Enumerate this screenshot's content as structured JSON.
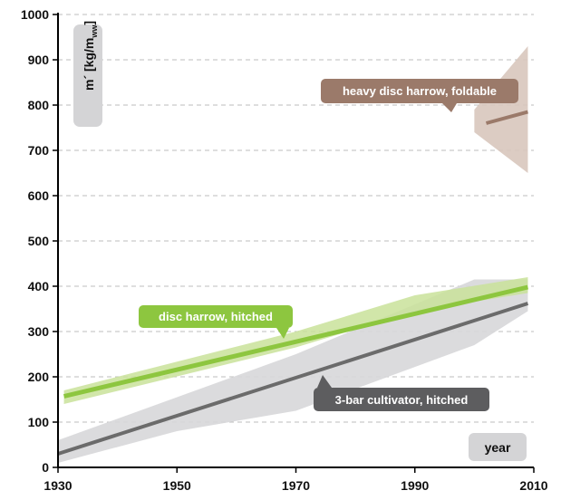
{
  "chart_data": {
    "type": "line",
    "title": "",
    "xlabel": "year",
    "ylabel": "m´ [kg/mww]",
    "ylabel_parts": {
      "main": "m´ [kg/m",
      "sub": "ww",
      "close": "]"
    },
    "xlim": [
      1930,
      2010
    ],
    "ylim": [
      0,
      1000
    ],
    "x_ticks": [
      "1930",
      "1950",
      "1970",
      "1990",
      "2010"
    ],
    "y_ticks": [
      "0",
      "100",
      "200",
      "300",
      "400",
      "500",
      "600",
      "700",
      "800",
      "900",
      "1000"
    ],
    "grid": "horizontal dashed",
    "series": [
      {
        "name": "3-bar cultivator, hitched",
        "color": "#6b6b6b",
        "band_color": "#d7d7d9",
        "x": [
          1930,
          2009
        ],
        "y": [
          30,
          362
        ],
        "band_upper": [
          [
            1930,
            60
          ],
          [
            1970,
            250
          ],
          [
            2000,
            415
          ],
          [
            2009,
            415
          ]
        ],
        "band_lower": [
          [
            2009,
            345
          ],
          [
            2000,
            270
          ],
          [
            1970,
            125
          ],
          [
            1950,
            80
          ],
          [
            1930,
            10
          ]
        ]
      },
      {
        "name": "disc harrow, hitched",
        "color": "#8dc63f",
        "band_color": "#c9e29a",
        "x": [
          1931,
          2009
        ],
        "y": [
          157,
          398
        ],
        "band_upper": [
          [
            1931,
            170
          ],
          [
            1970,
            300
          ],
          [
            1990,
            380
          ],
          [
            2009,
            420
          ]
        ],
        "band_lower": [
          [
            2009,
            385
          ],
          [
            1990,
            345
          ],
          [
            1970,
            265
          ],
          [
            1931,
            140
          ]
        ]
      },
      {
        "name": "heavy disc harrow, foldable",
        "color": "#9b7a6a",
        "band_color": "#d8c6bd",
        "x": [
          2002,
          2009
        ],
        "y": [
          760,
          785
        ],
        "band_upper": [
          [
            2000,
            790
          ],
          [
            2009,
            930
          ],
          [
            2009,
            930
          ]
        ],
        "band_lower": [
          [
            2009,
            650
          ],
          [
            2000,
            740
          ]
        ]
      }
    ]
  }
}
